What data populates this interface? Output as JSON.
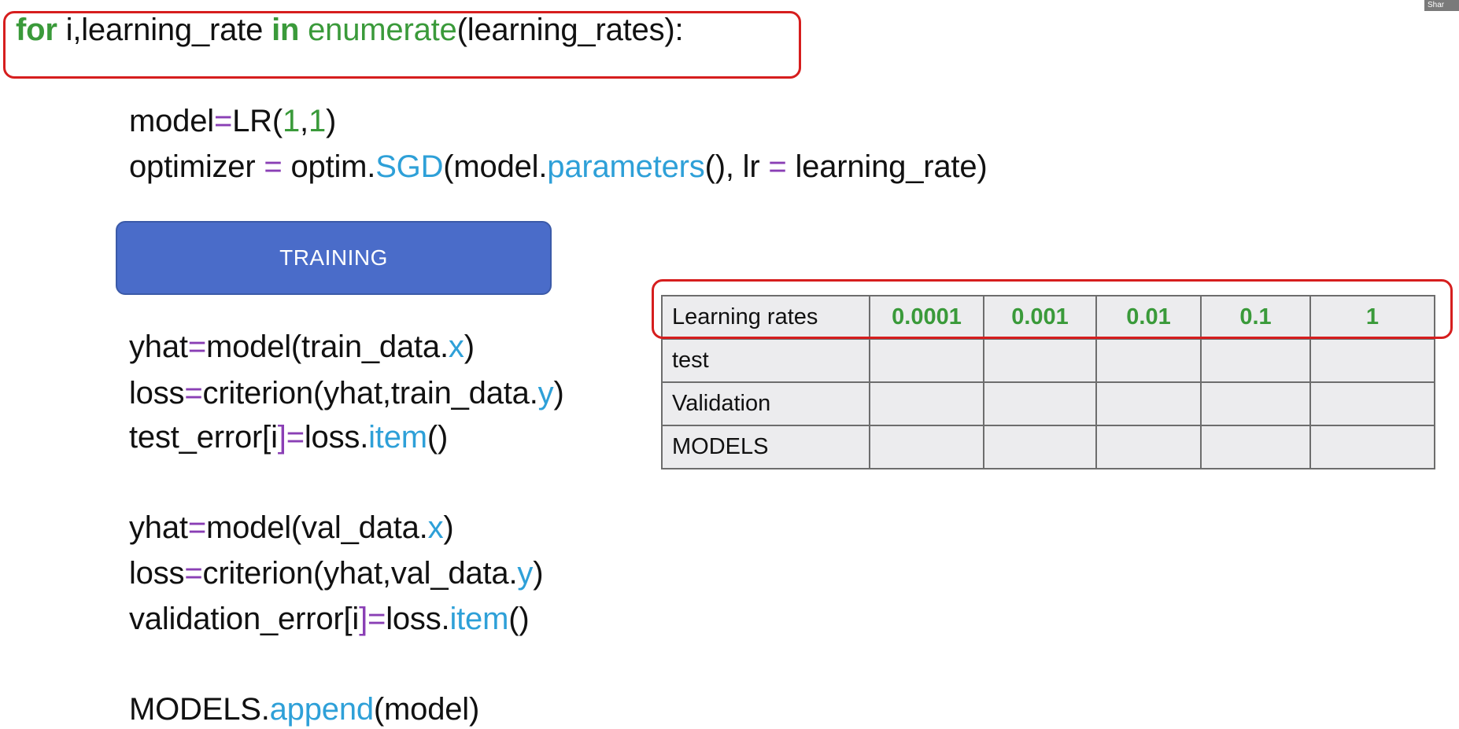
{
  "code": {
    "for_line": [
      "for",
      " i,learning_rate ",
      "in",
      " ",
      "enumerate",
      "(learning_rates):"
    ],
    "model_line": [
      "model",
      "=",
      "LR(",
      "1",
      ",",
      "1",
      ")"
    ],
    "optimizer_line": [
      "optimizer ",
      "=",
      " optim.",
      "SGD",
      "(model.",
      "parameters",
      "(), lr ",
      "=",
      " learning_rate)"
    ],
    "training_label": "TRAINING",
    "train_yhat_line": [
      "yhat",
      "=",
      "model(train_data.",
      "x",
      ")"
    ],
    "train_loss_line": [
      "loss",
      "=",
      "criterion(yhat,train_data.",
      "y",
      ")"
    ],
    "test_error_line": [
      "test_error[i",
      "]",
      "=",
      "loss.",
      "item",
      "()"
    ],
    "val_yhat_line": [
      "yhat",
      "=",
      "model(val_data.",
      "x",
      ")"
    ],
    "val_loss_line": [
      "loss",
      "=",
      "criterion(yhat,val_data.",
      "y",
      ")"
    ],
    "val_error_line": [
      "validation_error[i",
      "]",
      "=",
      "loss.",
      "item",
      "()"
    ],
    "append_line": [
      "MODELS.",
      "append",
      "(model)"
    ]
  },
  "table": {
    "header_label": "Learning rates",
    "rates": [
      "0.0001",
      "0.001",
      "0.01",
      "0.1",
      "1"
    ],
    "rows": [
      "test",
      "Validation",
      "MODELS"
    ]
  },
  "share_badge": "Shar",
  "colors": {
    "keyword": "#3a9a3a",
    "operator": "#8a3fb5",
    "attribute": "#2ea0d8",
    "training_box": "#4a6cc9",
    "highlight": "#d61e1e"
  }
}
